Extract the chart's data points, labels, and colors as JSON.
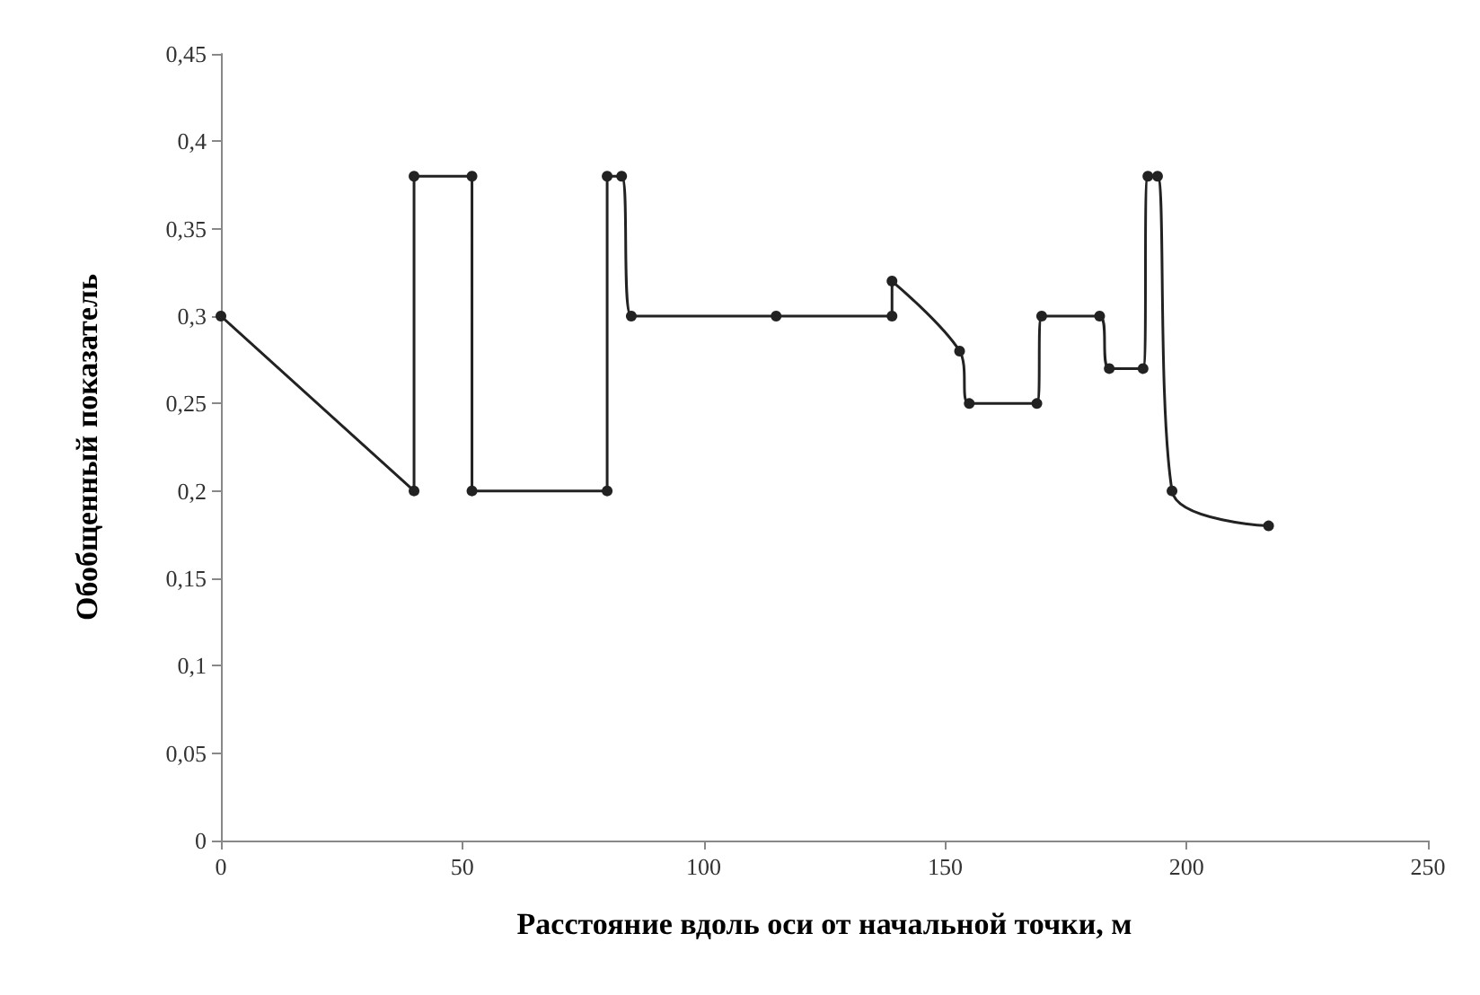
{
  "chart_data": {
    "type": "line",
    "xlabel": "Расстояние вдоль оси от начальной точки, м",
    "ylabel": "Обобщенный показатель",
    "x": [
      0,
      40,
      40,
      52,
      52,
      80,
      80,
      83,
      85,
      115,
      139,
      139,
      153,
      155,
      169,
      170,
      182,
      184,
      191,
      192,
      194,
      197,
      217
    ],
    "series": [
      {
        "color": "#222222",
        "values": [
          0.3,
          0.2,
          0.38,
          0.38,
          0.2,
          0.2,
          0.38,
          0.38,
          0.3,
          0.3,
          0.3,
          0.32,
          0.28,
          0.25,
          0.25,
          0.3,
          0.3,
          0.27,
          0.27,
          0.38,
          0.38,
          0.2,
          0.18
        ]
      }
    ],
    "xlim": [
      0,
      250
    ],
    "xticks": [
      0,
      50,
      100,
      150,
      200,
      250
    ],
    "ylim": [
      0,
      0.45
    ],
    "yticks": [
      0,
      {
        "value": 0.05,
        "label": "0,05"
      },
      {
        "value": 0.1,
        "label": "0,1"
      },
      {
        "value": 0.15,
        "label": "0,15"
      },
      {
        "value": 0.2,
        "label": "0,2"
      },
      {
        "value": 0.25,
        "label": "0,25"
      },
      {
        "value": 0.3,
        "label": "0,3"
      },
      {
        "value": 0.35,
        "label": "0,35"
      },
      {
        "value": 0.4,
        "label": "0,4"
      },
      {
        "value": 0.45,
        "label": "0,45"
      }
    ],
    "marker": "circle"
  }
}
